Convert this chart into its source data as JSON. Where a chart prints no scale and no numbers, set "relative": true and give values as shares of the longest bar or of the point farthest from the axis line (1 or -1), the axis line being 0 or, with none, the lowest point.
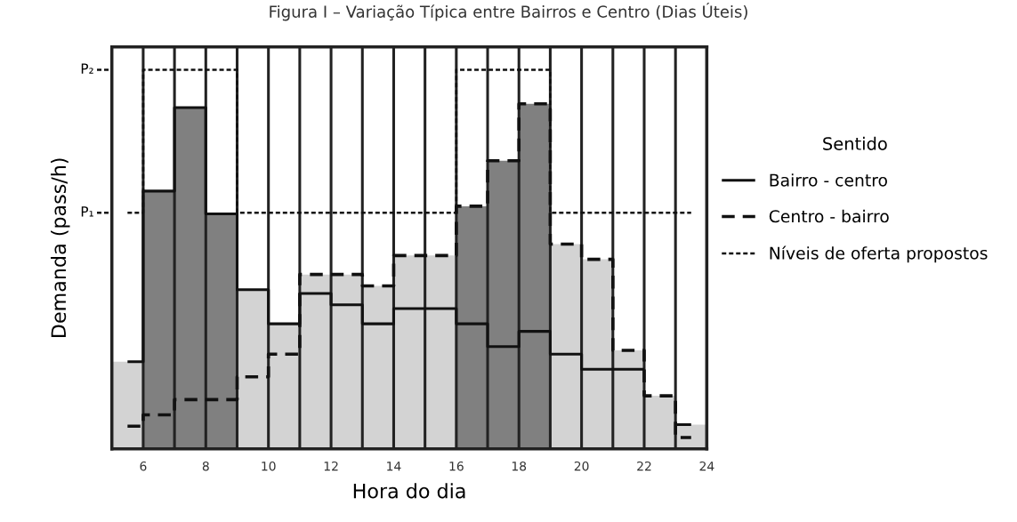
{
  "chart_data": {
    "type": "bar",
    "title": "Figura I – Variação Típica entre Bairros e Centro (Dias Úteis)",
    "xlabel": "Hora do dia",
    "ylabel": "Demanda (pass/h)",
    "legend_title": "Sentido",
    "relative": true,
    "x": [
      5.5,
      6.5,
      7.5,
      8.5,
      9.5,
      10.5,
      11.5,
      12.5,
      13.5,
      14.5,
      15.5,
      16.5,
      17.5,
      18.5,
      19.5,
      20.5,
      21.5,
      22.5,
      23.5
    ],
    "xlim": [
      5,
      24
    ],
    "xticks": [
      6,
      {
        "value": 7,
        "label": null
      },
      8,
      {
        "value": 9,
        "label": null
      },
      10,
      {
        "value": 11,
        "label": null
      },
      12,
      {
        "value": 13,
        "label": null
      },
      14,
      {
        "value": 15,
        "label": null
      },
      16,
      {
        "value": 17,
        "label": null
      },
      18,
      {
        "value": 19,
        "label": null
      },
      20,
      {
        "value": 21,
        "label": null
      },
      22,
      {
        "value": 23,
        "label": null
      },
      24
    ],
    "grid": "x",
    "legend": "right",
    "series": [
      {
        "type": "bar",
        "values": [
          0.23,
          0.68,
          0.9,
          0.62,
          0.42,
          0.33,
          0.46,
          0.46,
          0.43,
          0.51,
          0.51,
          0.64,
          0.76,
          0.91,
          0.54,
          0.5,
          0.26,
          0.14,
          0.064
        ],
        "colors": [
          "#d3d3d3",
          "#808080",
          "#808080",
          "#808080",
          "#d3d3d3",
          "#d3d3d3",
          "#d3d3d3",
          "#d3d3d3",
          "#d3d3d3",
          "#d3d3d3",
          "#d3d3d3",
          "#808080",
          "#808080",
          "#808080",
          "#d3d3d3",
          "#d3d3d3",
          "#d3d3d3",
          "#d3d3d3",
          "#d3d3d3"
        ]
      },
      {
        "type": "step",
        "name": "Bairro - centro",
        "color": "#111111",
        "line_style": "solid",
        "values": [
          0.23,
          0.68,
          0.9,
          0.62,
          0.42,
          0.33,
          0.41,
          0.38,
          0.33,
          0.37,
          0.37,
          0.33,
          0.27,
          0.31,
          0.25,
          0.21,
          0.21,
          null,
          0.064
        ]
      },
      {
        "type": "step",
        "name": "Centro - bairro",
        "color": "#111111",
        "line_style": "dashed",
        "values": [
          0.06,
          0.09,
          0.13,
          0.13,
          0.19,
          0.25,
          0.46,
          0.46,
          0.43,
          0.51,
          0.51,
          0.64,
          0.76,
          0.91,
          0.54,
          0.5,
          0.26,
          0.14,
          0.03
        ]
      },
      {
        "type": "step",
        "name": "Níveis de oferta propostos",
        "color": "#111111",
        "line_style": "dotted",
        "values": [
          0.623,
          1.0,
          1.0,
          1.0,
          0.623,
          0.623,
          0.623,
          0.623,
          0.623,
          0.623,
          0.623,
          1.0,
          1.0,
          1.0,
          0.623,
          0.623,
          0.623,
          0.623,
          0.623
        ]
      }
    ],
    "annotations": [
      "P₂",
      "P₁"
    ]
  }
}
